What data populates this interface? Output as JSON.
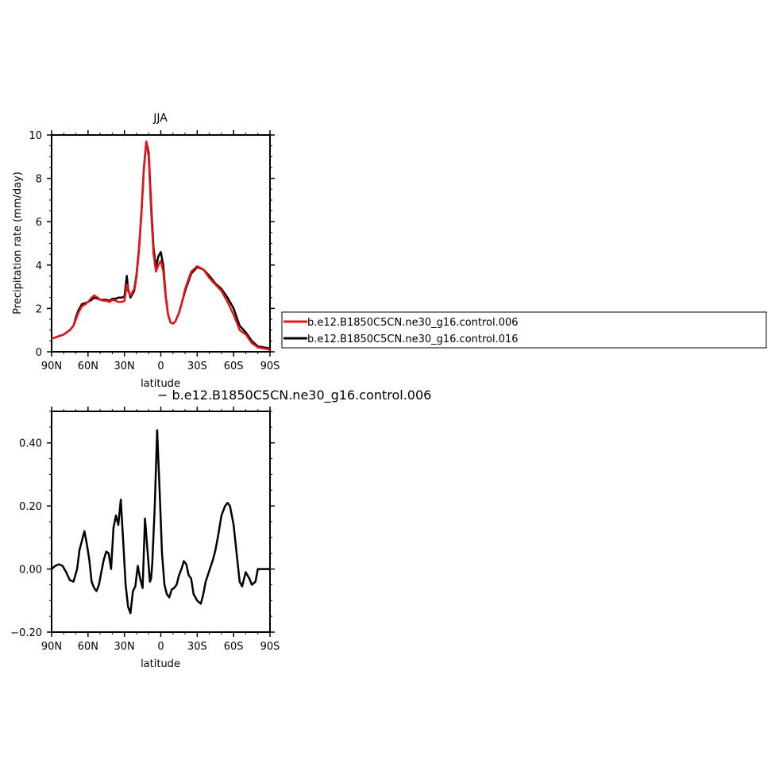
{
  "chart_data": [
    {
      "type": "line",
      "title": "JJA",
      "xlabel": "latitude",
      "ylabel": "Precipitation rate (mm/day)",
      "xlim": [
        90,
        -90
      ],
      "ylim": [
        0,
        10
      ],
      "x_tick_values": [
        90,
        60,
        30,
        0,
        -30,
        -60,
        -90
      ],
      "x_tick_labels": [
        "90N",
        "60N",
        "30N",
        "0",
        "30S",
        "60S",
        "90S"
      ],
      "y_tick_values": [
        0,
        2,
        4,
        6,
        8,
        10
      ],
      "y_tick_labels": [
        "0",
        "2",
        "4",
        "6",
        "8",
        "10"
      ],
      "legend": {
        "placement": "right",
        "entries": [
          "b.e12.B1850C5CN.ne30_g16.control.006",
          "b.e12.B1850C5CN.ne30_g16.control.016"
        ]
      },
      "series": [
        {
          "name": "b.e12.B1850C5CN.ne30_g16.control.006",
          "color": "#e8141a",
          "x": [
            90,
            85,
            80,
            75,
            72,
            70,
            68,
            65,
            62,
            60,
            57,
            55,
            52,
            50,
            47,
            45,
            42,
            40,
            37,
            35,
            32,
            30,
            28,
            27,
            25,
            22,
            20,
            18,
            16,
            14,
            12,
            10,
            8,
            6,
            4,
            2,
            0,
            -2,
            -4,
            -6,
            -8,
            -10,
            -12,
            -15,
            -18,
            -20,
            -25,
            -30,
            -35,
            -40,
            -45,
            -50,
            -55,
            -60,
            -65,
            -70,
            -75,
            -80,
            -85,
            -90
          ],
          "y": [
            0.6,
            0.7,
            0.8,
            1.0,
            1.2,
            1.5,
            1.8,
            2.1,
            2.2,
            2.3,
            2.5,
            2.6,
            2.5,
            2.4,
            2.35,
            2.35,
            2.3,
            2.4,
            2.35,
            2.3,
            2.3,
            2.35,
            3.1,
            2.8,
            2.6,
            2.9,
            3.6,
            4.8,
            6.5,
            8.5,
            9.7,
            9.0,
            6.5,
            4.5,
            3.7,
            4.0,
            4.2,
            3.7,
            2.5,
            1.7,
            1.35,
            1.3,
            1.4,
            1.8,
            2.4,
            2.9,
            3.7,
            3.95,
            3.8,
            3.4,
            3.1,
            2.8,
            2.3,
            1.7,
            1.0,
            0.8,
            0.4,
            0.2,
            0.15,
            0.1
          ]
        },
        {
          "name": "b.e12.B1850C5CN.ne30_g16.control.016",
          "color": "#000000",
          "x": [
            90,
            85,
            80,
            75,
            72,
            70,
            68,
            65,
            62,
            60,
            57,
            55,
            52,
            50,
            47,
            45,
            42,
            40,
            37,
            35,
            32,
            30,
            28,
            27,
            25,
            22,
            20,
            18,
            16,
            14,
            12,
            10,
            8,
            6,
            4,
            2,
            0,
            -2,
            -4,
            -6,
            -8,
            -10,
            -12,
            -15,
            -18,
            -20,
            -25,
            -30,
            -35,
            -40,
            -45,
            -50,
            -55,
            -60,
            -65,
            -70,
            -75,
            -80,
            -85,
            -90
          ],
          "y": [
            0.6,
            0.7,
            0.8,
            1.0,
            1.2,
            1.6,
            1.9,
            2.2,
            2.25,
            2.3,
            2.4,
            2.5,
            2.45,
            2.4,
            2.4,
            2.4,
            2.35,
            2.45,
            2.45,
            2.5,
            2.5,
            2.55,
            3.5,
            2.9,
            2.5,
            2.8,
            3.5,
            4.7,
            6.4,
            8.4,
            9.7,
            9.2,
            6.8,
            4.8,
            3.9,
            4.4,
            4.6,
            4.0,
            2.6,
            1.7,
            1.35,
            1.3,
            1.4,
            1.8,
            2.4,
            2.8,
            3.6,
            3.9,
            3.8,
            3.5,
            3.15,
            2.9,
            2.5,
            2.0,
            1.2,
            0.9,
            0.5,
            0.25,
            0.2,
            0.15
          ]
        }
      ]
    },
    {
      "type": "line",
      "title": "− b.e12.B1850C5CN.ne30_g16.control.006",
      "xlabel": "latitude",
      "ylabel": "",
      "xlim": [
        90,
        -90
      ],
      "ylim": [
        -0.2,
        0.5
      ],
      "x_tick_values": [
        90,
        60,
        30,
        0,
        -30,
        -60,
        -90
      ],
      "x_tick_labels": [
        "90N",
        "60N",
        "30N",
        "0",
        "30S",
        "60S",
        "90S"
      ],
      "y_tick_values": [
        -0.2,
        0,
        0.2,
        0.4
      ],
      "y_tick_labels": [
        "−0.20",
        "0.00",
        "0.20",
        "0.40"
      ],
      "series": [
        {
          "color": "#000000",
          "x": [
            90,
            87,
            84,
            81,
            78,
            75,
            72,
            69,
            67,
            65,
            63,
            61,
            59,
            57,
            55,
            53,
            51,
            49,
            47,
            45,
            43,
            41,
            39,
            37,
            35,
            33,
            31,
            29,
            27,
            25,
            23,
            21,
            19,
            17,
            15,
            13,
            11,
            9,
            8,
            7,
            5,
            3,
            1,
            -1,
            -3,
            -5,
            -7,
            -9,
            -11,
            -13,
            -15,
            -17,
            -19,
            -21,
            -23,
            -25,
            -27,
            -30,
            -33,
            -35,
            -37,
            -40,
            -43,
            -45,
            -47,
            -50,
            -53,
            -55,
            -57,
            -60,
            -63,
            -65,
            -67,
            -70,
            -73,
            -75,
            -78,
            -80,
            -83,
            -86,
            -88,
            -90
          ],
          "y": [
            0.0,
            0.01,
            0.015,
            0.01,
            -0.01,
            -0.035,
            -0.04,
            0.0,
            0.06,
            0.09,
            0.12,
            0.08,
            0.03,
            -0.04,
            -0.06,
            -0.07,
            -0.05,
            -0.01,
            0.03,
            0.055,
            0.05,
            0.0,
            0.13,
            0.17,
            0.14,
            0.22,
            0.09,
            -0.05,
            -0.12,
            -0.14,
            -0.07,
            -0.055,
            0.01,
            -0.03,
            -0.06,
            0.16,
            0.06,
            -0.04,
            -0.03,
            0.02,
            0.2,
            0.44,
            0.25,
            0.05,
            -0.05,
            -0.08,
            -0.09,
            -0.065,
            -0.06,
            -0.05,
            -0.02,
            0.0,
            0.025,
            0.015,
            -0.02,
            -0.03,
            -0.08,
            -0.1,
            -0.11,
            -0.08,
            -0.04,
            -0.005,
            0.03,
            0.06,
            0.1,
            0.17,
            0.2,
            0.21,
            0.2,
            0.14,
            0.03,
            -0.04,
            -0.055,
            -0.01,
            -0.03,
            -0.05,
            -0.04,
            0.0,
            0.0,
            0.0,
            0.0,
            0.0
          ]
        }
      ]
    }
  ]
}
